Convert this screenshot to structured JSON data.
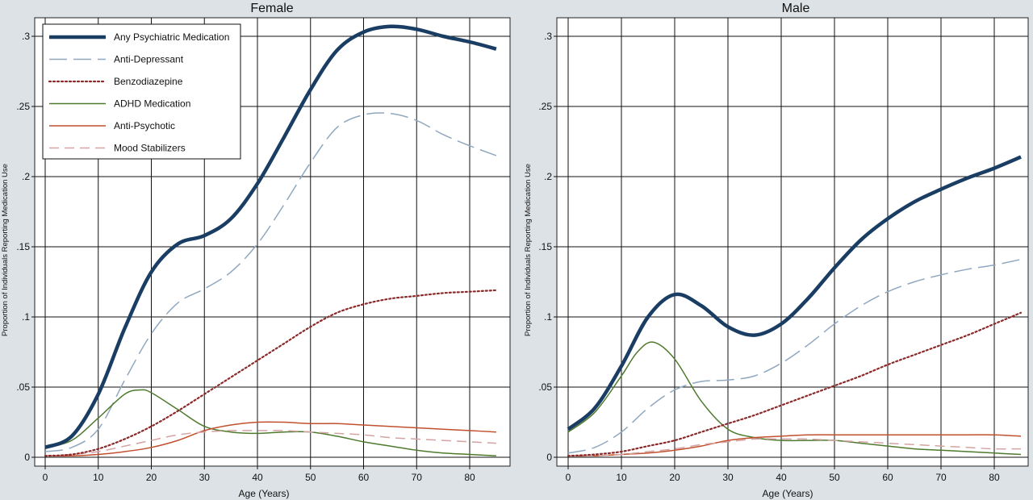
{
  "chart_data": [
    {
      "type": "line",
      "title": "Female",
      "xlabel": "Age (Years)",
      "ylabel": "Proportion of Individuals Reporting Medication Use",
      "xlim": [
        0,
        85
      ],
      "ylim": [
        0,
        0.3
      ],
      "x_ticks": [
        0,
        10,
        20,
        30,
        40,
        50,
        60,
        70,
        80
      ],
      "y_ticks": [
        0,
        0.05,
        0.1,
        0.15,
        0.2,
        0.25,
        0.3
      ],
      "y_tick_labels": [
        "0",
        ".05",
        ".1",
        ".15",
        ".2",
        ".25",
        ".3"
      ],
      "grid": true,
      "legend": "top-left",
      "series": [
        {
          "name": "Any Psychiatric Medication",
          "color": "#1a3d63",
          "dash": "solid",
          "x": [
            0,
            5,
            10,
            15,
            20,
            25,
            30,
            35,
            40,
            45,
            50,
            55,
            60,
            65,
            70,
            75,
            80,
            85
          ],
          "y": [
            0.007,
            0.015,
            0.045,
            0.092,
            0.132,
            0.152,
            0.158,
            0.17,
            0.195,
            0.228,
            0.262,
            0.29,
            0.303,
            0.307,
            0.305,
            0.3,
            0.296,
            0.291
          ]
        },
        {
          "name": "Anti-Depressant",
          "color": "#8fa8c0",
          "dash": "long-dash",
          "x": [
            0,
            5,
            10,
            15,
            20,
            25,
            30,
            35,
            40,
            45,
            50,
            55,
            60,
            65,
            70,
            75,
            80,
            85
          ],
          "y": [
            0.004,
            0.007,
            0.02,
            0.055,
            0.088,
            0.11,
            0.12,
            0.132,
            0.152,
            0.18,
            0.21,
            0.235,
            0.244,
            0.245,
            0.24,
            0.23,
            0.222,
            0.215
          ]
        },
        {
          "name": "Benzodiazepine",
          "color": "#8b2a2a",
          "dash": "dotted",
          "x": [
            0,
            5,
            10,
            15,
            20,
            25,
            30,
            35,
            40,
            45,
            50,
            55,
            60,
            65,
            70,
            75,
            80,
            85
          ],
          "y": [
            0.001,
            0.002,
            0.006,
            0.013,
            0.022,
            0.033,
            0.045,
            0.057,
            0.069,
            0.081,
            0.093,
            0.103,
            0.109,
            0.113,
            0.115,
            0.117,
            0.118,
            0.119
          ]
        },
        {
          "name": "ADHD Medication",
          "color": "#4e7a2e",
          "dash": "solid",
          "x": [
            0,
            5,
            10,
            15,
            18,
            20,
            25,
            30,
            35,
            40,
            45,
            50,
            55,
            60,
            65,
            70,
            75,
            80,
            85
          ],
          "y": [
            0.007,
            0.012,
            0.028,
            0.045,
            0.048,
            0.046,
            0.034,
            0.022,
            0.018,
            0.017,
            0.018,
            0.018,
            0.015,
            0.011,
            0.008,
            0.005,
            0.003,
            0.002,
            0.001
          ]
        },
        {
          "name": "Anti-Psychotic",
          "color": "#c0502e",
          "dash": "solid",
          "x": [
            0,
            5,
            10,
            15,
            20,
            25,
            30,
            35,
            40,
            45,
            50,
            55,
            60,
            65,
            70,
            75,
            80,
            85
          ],
          "y": [
            0.001,
            0.001,
            0.002,
            0.004,
            0.007,
            0.012,
            0.019,
            0.023,
            0.025,
            0.025,
            0.024,
            0.024,
            0.023,
            0.022,
            0.021,
            0.02,
            0.019,
            0.018
          ]
        },
        {
          "name": "Mood Stabilizers",
          "color": "#d4a3a3",
          "dash": "dashed",
          "x": [
            0,
            5,
            10,
            15,
            20,
            25,
            30,
            35,
            40,
            45,
            50,
            55,
            60,
            65,
            70,
            75,
            80,
            85
          ],
          "y": [
            0.001,
            0.002,
            0.004,
            0.008,
            0.012,
            0.016,
            0.018,
            0.019,
            0.019,
            0.019,
            0.018,
            0.017,
            0.016,
            0.014,
            0.013,
            0.012,
            0.011,
            0.01
          ]
        }
      ]
    },
    {
      "type": "line",
      "title": "Male",
      "xlabel": "Age (Years)",
      "ylabel": "Proportion of Individuals Reporting Medication Use",
      "xlim": [
        0,
        85
      ],
      "ylim": [
        0,
        0.3
      ],
      "x_ticks": [
        0,
        10,
        20,
        30,
        40,
        50,
        60,
        70,
        80
      ],
      "y_ticks": [
        0,
        0.05,
        0.1,
        0.15,
        0.2,
        0.25,
        0.3
      ],
      "y_tick_labels": [
        "0",
        ".05",
        ".1",
        ".15",
        ".2",
        ".25",
        ".3"
      ],
      "grid": true,
      "series": [
        {
          "name": "Any Psychiatric Medication",
          "color": "#1a3d63",
          "dash": "solid",
          "x": [
            0,
            5,
            10,
            15,
            20,
            25,
            30,
            35,
            40,
            45,
            50,
            55,
            60,
            65,
            70,
            75,
            80,
            85
          ],
          "y": [
            0.02,
            0.035,
            0.065,
            0.1,
            0.116,
            0.108,
            0.093,
            0.087,
            0.095,
            0.113,
            0.135,
            0.155,
            0.17,
            0.182,
            0.191,
            0.199,
            0.206,
            0.214
          ]
        },
        {
          "name": "Anti-Depressant",
          "color": "#8fa8c0",
          "dash": "long-dash",
          "x": [
            0,
            5,
            10,
            15,
            20,
            25,
            30,
            35,
            40,
            45,
            50,
            55,
            60,
            65,
            70,
            75,
            80,
            85
          ],
          "y": [
            0.003,
            0.007,
            0.018,
            0.035,
            0.048,
            0.054,
            0.055,
            0.058,
            0.067,
            0.08,
            0.095,
            0.108,
            0.118,
            0.125,
            0.13,
            0.134,
            0.137,
            0.141
          ]
        },
        {
          "name": "Benzodiazepine",
          "color": "#8b2a2a",
          "dash": "dotted",
          "x": [
            0,
            5,
            10,
            15,
            20,
            25,
            30,
            35,
            40,
            45,
            50,
            55,
            60,
            65,
            70,
            75,
            80,
            85
          ],
          "y": [
            0.001,
            0.002,
            0.004,
            0.008,
            0.012,
            0.018,
            0.024,
            0.03,
            0.037,
            0.044,
            0.051,
            0.058,
            0.066,
            0.073,
            0.08,
            0.087,
            0.095,
            0.103
          ]
        },
        {
          "name": "ADHD Medication",
          "color": "#4e7a2e",
          "dash": "solid",
          "x": [
            0,
            5,
            10,
            13,
            16,
            20,
            25,
            30,
            35,
            40,
            45,
            50,
            55,
            60,
            65,
            70,
            75,
            80,
            85
          ],
          "y": [
            0.018,
            0.032,
            0.058,
            0.075,
            0.082,
            0.07,
            0.04,
            0.02,
            0.014,
            0.012,
            0.012,
            0.012,
            0.01,
            0.008,
            0.006,
            0.005,
            0.004,
            0.003,
            0.002
          ]
        },
        {
          "name": "Anti-Psychotic",
          "color": "#c0502e",
          "dash": "solid",
          "x": [
            0,
            5,
            10,
            15,
            20,
            25,
            30,
            35,
            40,
            45,
            50,
            55,
            60,
            65,
            70,
            75,
            80,
            85
          ],
          "y": [
            0.001,
            0.001,
            0.002,
            0.003,
            0.005,
            0.008,
            0.012,
            0.014,
            0.015,
            0.016,
            0.016,
            0.016,
            0.016,
            0.016,
            0.016,
            0.016,
            0.016,
            0.015
          ]
        },
        {
          "name": "Mood Stabilizers",
          "color": "#d4a3a3",
          "dash": "dashed",
          "x": [
            0,
            5,
            10,
            15,
            20,
            25,
            30,
            35,
            40,
            45,
            50,
            55,
            60,
            65,
            70,
            75,
            80,
            85
          ],
          "y": [
            0.001,
            0.001,
            0.002,
            0.004,
            0.006,
            0.009,
            0.011,
            0.013,
            0.013,
            0.013,
            0.012,
            0.011,
            0.01,
            0.009,
            0.008,
            0.007,
            0.006,
            0.006
          ]
        }
      ]
    }
  ]
}
